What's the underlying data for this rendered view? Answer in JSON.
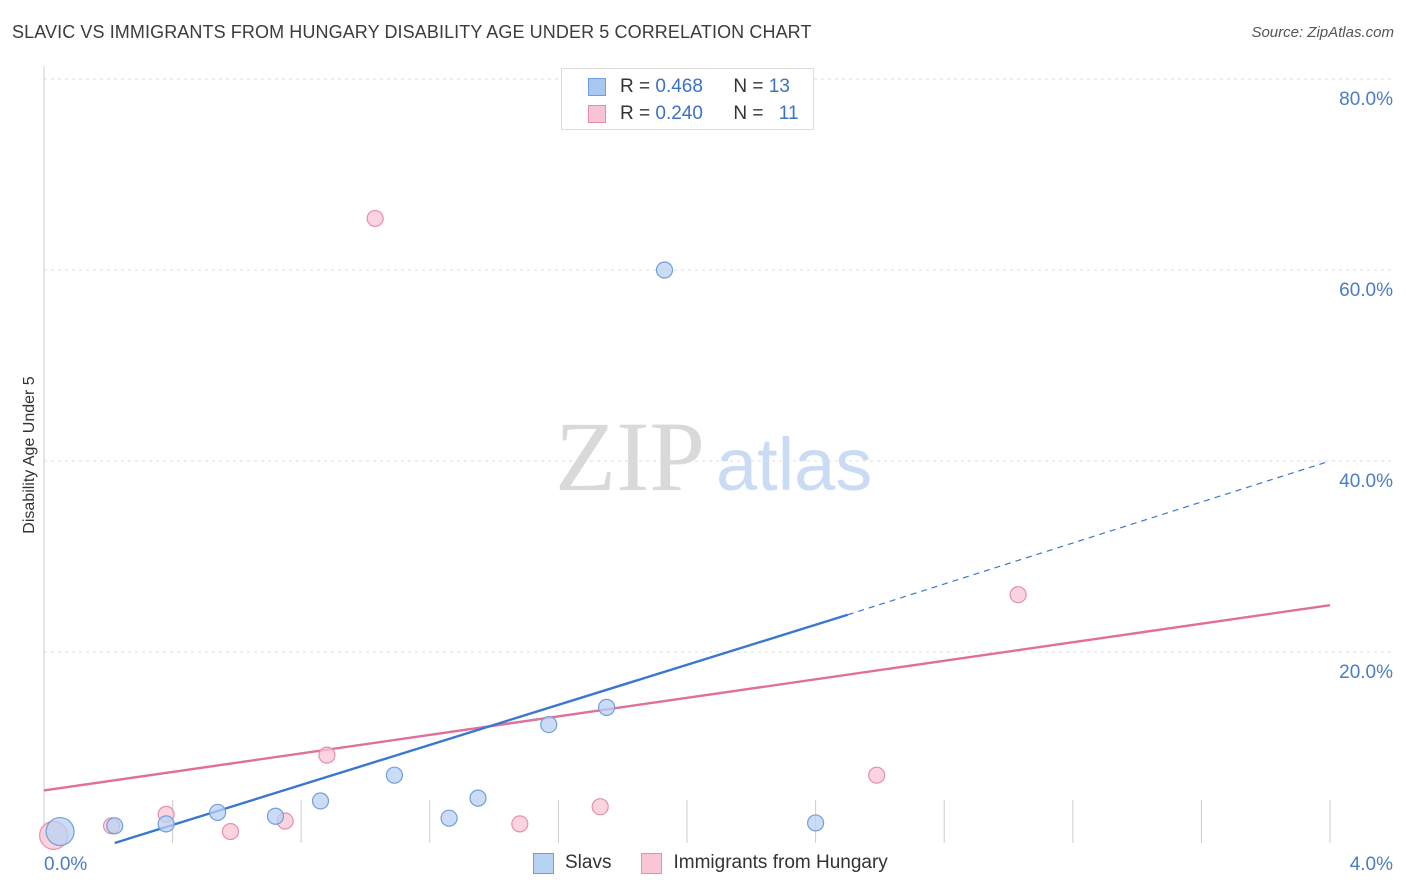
{
  "header": {
    "title": "SLAVIC VS IMMIGRANTS FROM HUNGARY DISABILITY AGE UNDER 5 CORRELATION CHART",
    "source": "Source: ZipAtlas.com"
  },
  "watermark": {
    "zip": "ZIP",
    "atlas": "atlas"
  },
  "legend": {
    "r_label": "R =",
    "n_label": "N =",
    "rows": [
      {
        "r": "0.468",
        "n": "13",
        "color": "#a9c8f0",
        "border": "#6c9ee0"
      },
      {
        "r": "0.240",
        "n": "11",
        "color": "#f8c3d2",
        "border": "#e88aa8"
      }
    ]
  },
  "bottom_legend": {
    "slavs": "Slavs",
    "hungary": "Immigrants from Hungary"
  },
  "colors": {
    "slavs_fill": "#b9d2f3",
    "slavs_stroke": "#6f9fde",
    "slavs_line": "#3a78d0",
    "hungary_fill": "#f9c6d4",
    "hungary_stroke": "#e58fab",
    "hungary_line": "#e0709a",
    "grid": "#dcdcdc",
    "axis_text": "#4a7cc9"
  },
  "chart_data": {
    "type": "scatter",
    "title": "SLAVIC VS IMMIGRANTS FROM HUNGARY DISABILITY AGE UNDER 5 CORRELATION CHART",
    "xlabel": "",
    "ylabel": "Disability Age Under 5",
    "xlim": [
      0,
      4.0
    ],
    "ylim": [
      0,
      80
    ],
    "x_tick_labels": [
      "0.0%",
      "4.0%"
    ],
    "y_ticks": [
      {
        "value": 20,
        "label": "20.0%"
      },
      {
        "value": 40,
        "label": "40.0%"
      },
      {
        "value": 60,
        "label": "60.0%"
      },
      {
        "value": 80,
        "label": "80.0%"
      }
    ],
    "series": [
      {
        "name": "Slavs",
        "r": 0.468,
        "n": 13,
        "points": [
          {
            "x": 0.05,
            "y": 1.2,
            "big": true
          },
          {
            "x": 0.22,
            "y": 1.8
          },
          {
            "x": 0.38,
            "y": 2.0
          },
          {
            "x": 0.54,
            "y": 3.2
          },
          {
            "x": 0.72,
            "y": 2.8
          },
          {
            "x": 0.86,
            "y": 4.4
          },
          {
            "x": 1.09,
            "y": 7.1
          },
          {
            "x": 1.26,
            "y": 2.6
          },
          {
            "x": 1.35,
            "y": 4.7
          },
          {
            "x": 1.57,
            "y": 12.4
          },
          {
            "x": 1.75,
            "y": 14.2
          },
          {
            "x": 1.93,
            "y": 60.0
          },
          {
            "x": 2.4,
            "y": 2.1
          }
        ],
        "trend": {
          "x0": 0.22,
          "y0": 0,
          "x1": 2.5,
          "y1": 23.9,
          "dash_to_x": 4.0,
          "dash_to_y": 40.0
        }
      },
      {
        "name": "Immigrants from Hungary",
        "r": 0.24,
        "n": 11,
        "points": [
          {
            "x": 0.03,
            "y": 0.8,
            "big": true
          },
          {
            "x": 0.21,
            "y": 1.8
          },
          {
            "x": 0.38,
            "y": 3.0
          },
          {
            "x": 0.58,
            "y": 1.2
          },
          {
            "x": 0.75,
            "y": 2.3
          },
          {
            "x": 0.88,
            "y": 9.2
          },
          {
            "x": 1.03,
            "y": 65.4
          },
          {
            "x": 1.48,
            "y": 2.0
          },
          {
            "x": 1.73,
            "y": 3.8
          },
          {
            "x": 2.59,
            "y": 7.1
          },
          {
            "x": 3.03,
            "y": 26.0
          }
        ],
        "trend": {
          "x0": 0.0,
          "y0": 5.5,
          "x1": 4.0,
          "y1": 24.9
        }
      }
    ]
  }
}
